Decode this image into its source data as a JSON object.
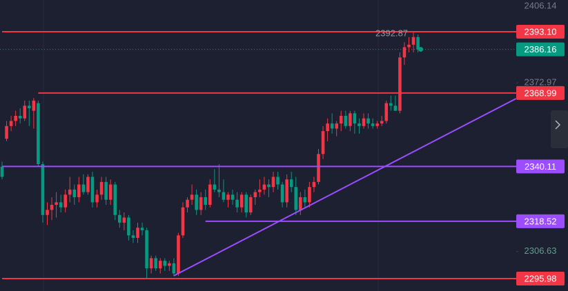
{
  "chart_data": {
    "type": "candlestick",
    "open": [
      2340,
      2351,
      2356,
      2358,
      2360,
      2359,
      2364,
      2362,
      2365,
      2341,
      2321,
      2323,
      2325,
      2326,
      2324,
      2329,
      2331,
      2328,
      2333,
      2330,
      2336,
      2326,
      2329,
      2334,
      2327,
      2333,
      2321,
      2318,
      2320,
      2313,
      2312,
      2316,
      2315,
      2300,
      2304,
      2300,
      2303,
      2301,
      2302,
      2298,
      2313,
      2324,
      2327,
      2329,
      2323,
      2328,
      2325,
      2333,
      2331,
      2330,
      2327,
      2329,
      2327,
      2324,
      2329,
      2322,
      2328,
      2330,
      2331,
      2333,
      2332,
      2336,
      2333,
      2326,
      2335,
      2332,
      2323,
      2328,
      2326,
      2332,
      2334,
      2345,
      2354,
      2357,
      2355,
      2357,
      2360,
      2356,
      2361,
      2357,
      2356,
      2359,
      2357,
      2356,
      2357,
      2358,
      2365,
      2364,
      2362,
      2383,
      2387,
      2388,
      2391
    ],
    "high": [
      2342,
      2358,
      2360,
      2362,
      2363,
      2366,
      2366,
      2367,
      2366,
      2342,
      2326,
      2328,
      2330,
      2329,
      2331,
      2336,
      2333,
      2336,
      2337,
      2337,
      2338,
      2331,
      2336,
      2336,
      2335,
      2334,
      2323,
      2322,
      2321,
      2315,
      2318,
      2318,
      2316,
      2305,
      2305,
      2304,
      2304,
      2303,
      2304,
      2314,
      2326,
      2328,
      2333,
      2331,
      2330,
      2331,
      2335,
      2339,
      2341,
      2335,
      2330,
      2331,
      2330,
      2330,
      2330,
      2329,
      2331,
      2335,
      2336,
      2335,
      2338,
      2338,
      2334,
      2337,
      2338,
      2336,
      2330,
      2331,
      2334,
      2336,
      2347,
      2356,
      2359,
      2361,
      2358,
      2362,
      2362,
      2362,
      2362,
      2359,
      2361,
      2361,
      2359,
      2358,
      2360,
      2366,
      2368,
      2368,
      2385,
      2389,
      2391,
      2392.87,
      2392
    ],
    "low": [
      2335,
      2350,
      2354,
      2356,
      2357,
      2358,
      2356,
      2355,
      2340,
      2318,
      2317,
      2319,
      2320,
      2322,
      2322,
      2326,
      2325,
      2326,
      2329,
      2329,
      2324,
      2324,
      2327,
      2325,
      2325,
      2319,
      2316,
      2315,
      2311,
      2310,
      2310,
      2313,
      2296,
      2298,
      2299,
      2298,
      2299,
      2299,
      2297,
      2297,
      2312,
      2322,
      2325,
      2321,
      2321,
      2323,
      2324,
      2330,
      2328,
      2326,
      2324,
      2325,
      2322,
      2322,
      2320,
      2321,
      2325,
      2328,
      2329,
      2328,
      2330,
      2331,
      2324,
      2324,
      2330,
      2321,
      2321,
      2324,
      2324,
      2330,
      2333,
      2343,
      2350,
      2353,
      2352,
      2354,
      2355,
      2354,
      2353,
      2353,
      2355,
      2355,
      2355,
      2355,
      2356,
      2357,
      2362,
      2362,
      2361,
      2380,
      2385,
      2385,
      2385
    ],
    "close": [
      2336,
      2356,
      2358,
      2360,
      2359,
      2364,
      2363,
      2366,
      2341,
      2321,
      2323,
      2325,
      2326,
      2324,
      2329,
      2331,
      2328,
      2333,
      2330,
      2336,
      2326,
      2329,
      2334,
      2327,
      2333,
      2321,
      2318,
      2320,
      2313,
      2312,
      2316,
      2315,
      2300,
      2304,
      2300,
      2303,
      2301,
      2302,
      2298,
      2313,
      2324,
      2327,
      2329,
      2323,
      2328,
      2325,
      2333,
      2331,
      2330,
      2327,
      2329,
      2327,
      2324,
      2329,
      2322,
      2328,
      2330,
      2331,
      2333,
      2332,
      2336,
      2333,
      2326,
      2335,
      2332,
      2323,
      2328,
      2326,
      2332,
      2334,
      2345,
      2354,
      2357,
      2355,
      2357,
      2360,
      2356,
      2361,
      2357,
      2356,
      2359,
      2357,
      2356,
      2357,
      2358,
      2365,
      2364,
      2362,
      2383,
      2387,
      2388,
      2391,
      2386.16
    ],
    "up_color": "#f23645",
    "down_color": "#089981",
    "ylim": [
      2291.1,
      2405.58
    ],
    "yticks": [
      2406.14,
      2372.97,
      2306.63
    ],
    "price_lines": [
      {
        "value": 2393.1,
        "label": "2393.10",
        "color": "#f23645",
        "start": 0
      },
      {
        "value": 2368.99,
        "color": "#f23645",
        "start": 8
      },
      {
        "value": 2340.11,
        "color": "#9c4dff",
        "start": 0
      },
      {
        "value": 2318.52,
        "color": "#9c4dff",
        "start": 45
      },
      {
        "value": 2295.98,
        "color": "#f23645",
        "start": 0
      }
    ],
    "trendlines": [
      {
        "color": "#9c4dff",
        "points": [
          [
            38,
            2297.1
          ],
          [
            113.7,
            2366.8
          ]
        ]
      }
    ]
  }
}
